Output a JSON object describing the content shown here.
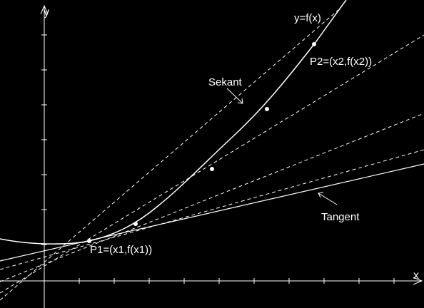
{
  "colors": {
    "background": "#000000",
    "foreground": "#ffffff"
  },
  "axes": {
    "x_label": "x",
    "y_label": "y"
  },
  "labels": {
    "curve": "y=f(x)",
    "secant": "Sekant",
    "tangent": "Tangent",
    "p1": "P1=(x1,f(x1))",
    "p2": "P2=(x2,f(x2))"
  }
}
